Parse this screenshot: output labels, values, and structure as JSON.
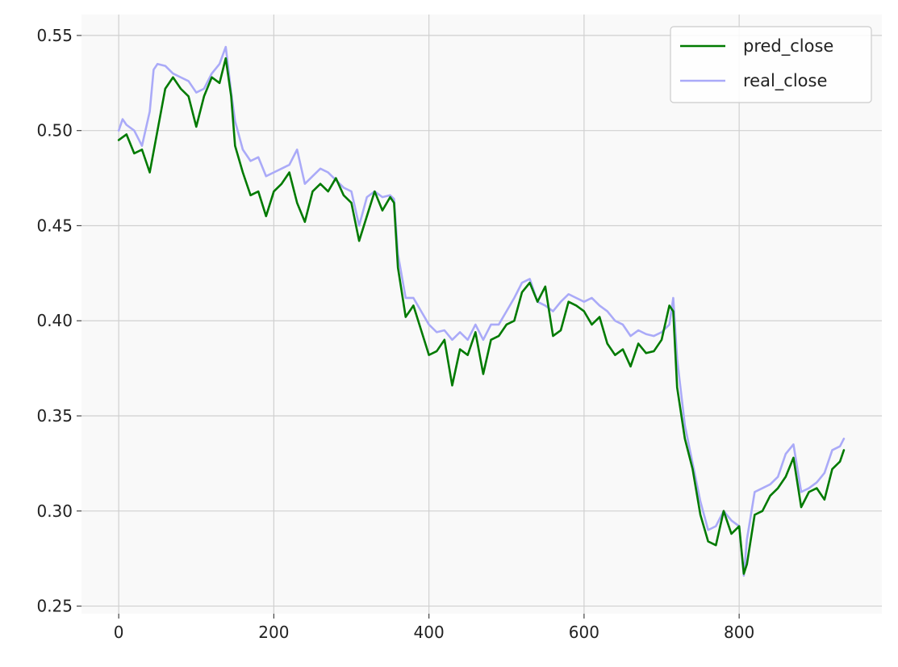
{
  "chart_data": {
    "type": "line",
    "title": "",
    "xlabel": "",
    "ylabel": "",
    "xlim": [
      -48,
      984
    ],
    "ylim": [
      0.246,
      0.561
    ],
    "xticks": [
      0,
      200,
      400,
      600,
      800
    ],
    "xtick_labels": [
      "0",
      "200",
      "400",
      "600",
      "800"
    ],
    "yticks": [
      0.25,
      0.3,
      0.35,
      0.4,
      0.45,
      0.5,
      0.55
    ],
    "ytick_labels": [
      "0.25",
      "0.30",
      "0.35",
      "0.40",
      "0.45",
      "0.50",
      "0.55"
    ],
    "grid": true,
    "legend_position": "top-right",
    "background_color": "#f9f9f9",
    "grid_color": "#d0d0d0",
    "series": [
      {
        "name": "pred_close",
        "color": "#007a00",
        "x": [
          0,
          10,
          20,
          30,
          40,
          50,
          60,
          70,
          80,
          90,
          100,
          110,
          120,
          130,
          138,
          145,
          150,
          160,
          170,
          180,
          190,
          200,
          210,
          220,
          230,
          240,
          250,
          260,
          270,
          280,
          290,
          300,
          310,
          320,
          330,
          340,
          350,
          355,
          360,
          370,
          380,
          390,
          400,
          410,
          420,
          430,
          440,
          450,
          460,
          470,
          480,
          490,
          500,
          510,
          520,
          530,
          540,
          550,
          560,
          570,
          580,
          590,
          600,
          610,
          620,
          630,
          640,
          650,
          660,
          670,
          680,
          690,
          700,
          710,
          715,
          720,
          730,
          740,
          750,
          760,
          770,
          780,
          790,
          800,
          806,
          810,
          820,
          830,
          840,
          850,
          860,
          870,
          880,
          890,
          900,
          910,
          920,
          930,
          935
        ],
        "y": [
          0.495,
          0.498,
          0.488,
          0.49,
          0.478,
          0.5,
          0.522,
          0.528,
          0.522,
          0.518,
          0.502,
          0.518,
          0.528,
          0.525,
          0.538,
          0.518,
          0.492,
          0.478,
          0.466,
          0.468,
          0.455,
          0.468,
          0.472,
          0.478,
          0.462,
          0.452,
          0.468,
          0.472,
          0.468,
          0.475,
          0.466,
          0.462,
          0.442,
          0.455,
          0.468,
          0.458,
          0.465,
          0.462,
          0.428,
          0.402,
          0.408,
          0.395,
          0.382,
          0.384,
          0.39,
          0.366,
          0.385,
          0.382,
          0.394,
          0.372,
          0.39,
          0.392,
          0.398,
          0.4,
          0.415,
          0.42,
          0.41,
          0.418,
          0.392,
          0.395,
          0.41,
          0.408,
          0.405,
          0.398,
          0.402,
          0.388,
          0.382,
          0.385,
          0.376,
          0.388,
          0.383,
          0.384,
          0.39,
          0.408,
          0.405,
          0.365,
          0.338,
          0.322,
          0.298,
          0.284,
          0.282,
          0.3,
          0.288,
          0.292,
          0.267,
          0.272,
          0.298,
          0.3,
          0.308,
          0.312,
          0.318,
          0.328,
          0.302,
          0.31,
          0.312,
          0.306,
          0.322,
          0.326,
          0.332
        ]
      },
      {
        "name": "real_close",
        "color": "#aaaaf8",
        "x": [
          0,
          5,
          10,
          20,
          30,
          40,
          45,
          50,
          60,
          70,
          80,
          90,
          100,
          110,
          120,
          130,
          138,
          145,
          150,
          160,
          170,
          180,
          190,
          200,
          210,
          220,
          230,
          240,
          250,
          260,
          270,
          280,
          290,
          300,
          310,
          320,
          330,
          340,
          350,
          355,
          360,
          370,
          380,
          390,
          400,
          410,
          420,
          430,
          440,
          450,
          460,
          470,
          480,
          490,
          500,
          510,
          520,
          530,
          540,
          550,
          560,
          570,
          580,
          590,
          600,
          610,
          620,
          630,
          640,
          650,
          660,
          670,
          680,
          690,
          700,
          710,
          715,
          720,
          730,
          740,
          750,
          760,
          770,
          780,
          790,
          800,
          806,
          810,
          820,
          830,
          840,
          850,
          860,
          870,
          880,
          890,
          900,
          910,
          920,
          930,
          935
        ],
        "y": [
          0.5,
          0.506,
          0.503,
          0.5,
          0.492,
          0.51,
          0.532,
          0.535,
          0.534,
          0.53,
          0.528,
          0.526,
          0.52,
          0.522,
          0.53,
          0.535,
          0.544,
          0.52,
          0.505,
          0.49,
          0.484,
          0.486,
          0.476,
          0.478,
          0.48,
          0.482,
          0.49,
          0.472,
          0.476,
          0.48,
          0.478,
          0.474,
          0.47,
          0.468,
          0.45,
          0.465,
          0.468,
          0.465,
          0.466,
          0.464,
          0.435,
          0.412,
          0.412,
          0.405,
          0.398,
          0.394,
          0.395,
          0.39,
          0.394,
          0.39,
          0.398,
          0.39,
          0.398,
          0.398,
          0.405,
          0.412,
          0.42,
          0.422,
          0.41,
          0.408,
          0.405,
          0.41,
          0.414,
          0.412,
          0.41,
          0.412,
          0.408,
          0.405,
          0.4,
          0.398,
          0.392,
          0.395,
          0.393,
          0.392,
          0.394,
          0.398,
          0.412,
          0.38,
          0.345,
          0.325,
          0.305,
          0.29,
          0.292,
          0.3,
          0.295,
          0.292,
          0.266,
          0.285,
          0.31,
          0.312,
          0.314,
          0.318,
          0.33,
          0.335,
          0.31,
          0.312,
          0.315,
          0.32,
          0.332,
          0.334,
          0.338
        ]
      }
    ]
  }
}
